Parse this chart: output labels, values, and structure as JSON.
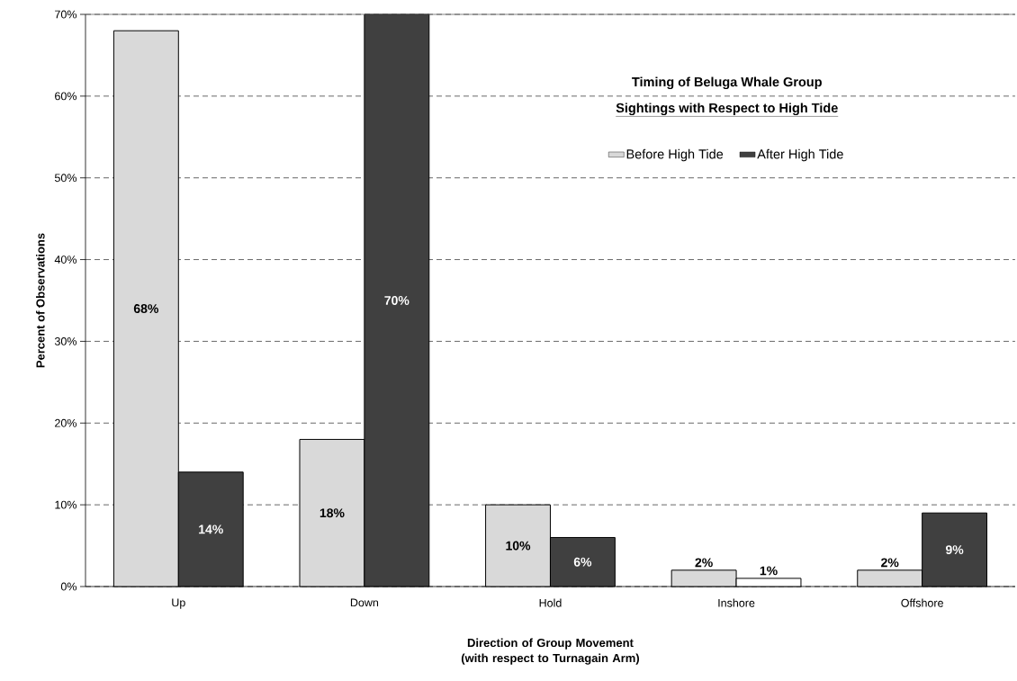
{
  "chart_data": {
    "type": "bar",
    "title": "Timing of Beluga Whale Group",
    "subtitle": "Sightings with Respect to High Tide",
    "xlabel": "Direction of Group Movement (with respect to Turnagain Arm)",
    "ylabel": "Percent of Observations",
    "categories": [
      "Up",
      "Down",
      "Hold",
      "Inshore",
      "Offshore"
    ],
    "series": [
      {
        "name": "Before High Tide",
        "color": "#d9d9d9",
        "colors": [
          "#d9d9d9",
          "#d9d9d9",
          "#d9d9d9",
          "#d9d9d9",
          "#d9d9d9"
        ],
        "values": [
          68,
          18,
          10,
          2,
          2
        ],
        "value_labels": [
          "68%",
          "18%",
          "10%",
          "2%",
          "2%"
        ]
      },
      {
        "name": "After High Tide",
        "color": "#404040",
        "colors": [
          "#404040",
          "#404040",
          "#404040",
          "#ffffff",
          "#404040"
        ],
        "values": [
          14,
          70,
          6,
          1,
          9
        ],
        "value_labels": [
          "14%",
          "70%",
          "6%",
          "1%",
          "9%"
        ]
      }
    ],
    "ylim": [
      0,
      70
    ],
    "yticks": [
      {
        "value": 0,
        "label": "0%"
      },
      {
        "value": 10,
        "label": "10%"
      },
      {
        "value": 20,
        "label": "20%"
      },
      {
        "value": 30,
        "label": "30%"
      },
      {
        "value": 40,
        "label": "40%"
      },
      {
        "value": 50,
        "label": "50%"
      },
      {
        "value": 60,
        "label": "60%"
      },
      {
        "value": 70,
        "label": "70%"
      }
    ],
    "grid": "y",
    "legend": "top right"
  }
}
